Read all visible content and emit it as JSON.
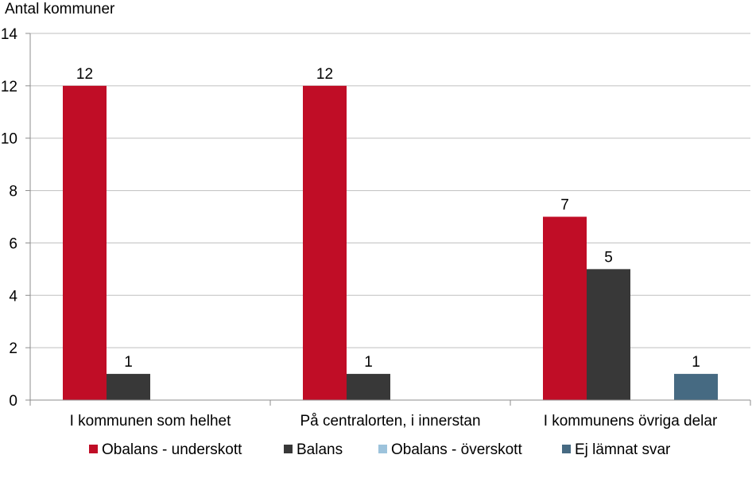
{
  "chart_data": {
    "type": "bar",
    "ylabel": "Antal kommuner",
    "ylim": [
      0,
      14
    ],
    "yticks": [
      0,
      2,
      4,
      6,
      8,
      10,
      12,
      14
    ],
    "grid": true,
    "legend_position": "bottom",
    "categories": [
      "I kommunen som helhet",
      "På centralorten, i innerstan",
      "I kommunens övriga delar"
    ],
    "series": [
      {
        "name": "Obalans - underskott",
        "color": "#c00d26",
        "values": [
          12,
          12,
          7
        ]
      },
      {
        "name": "Balans",
        "color": "#383838",
        "values": [
          1,
          1,
          5
        ]
      },
      {
        "name": "Obalans - överskott",
        "color": "#9dc3dc",
        "values": [
          0,
          0,
          0
        ]
      },
      {
        "name": "Ej lämnat svar",
        "color": "#466a82",
        "values": [
          0,
          0,
          1
        ]
      }
    ]
  }
}
